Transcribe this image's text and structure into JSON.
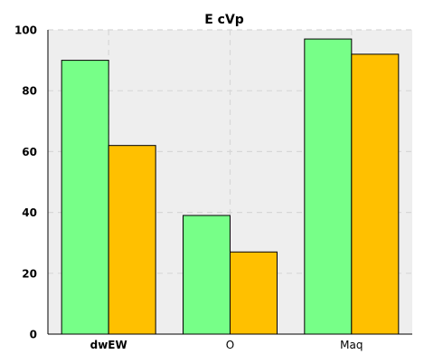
{
  "chart_data": {
    "type": "bar",
    "title": "E cVp",
    "xlabel": "",
    "ylabel": "",
    "categories": [
      "dwEW",
      "O",
      "Maq"
    ],
    "series": [
      {
        "values": [
          90,
          39,
          97
        ],
        "color": "#77ff88"
      },
      {
        "values": [
          62,
          27,
          92
        ],
        "color": "#ffc000"
      }
    ],
    "ylim": [
      0,
      100
    ],
    "yticks": [
      0,
      20,
      40,
      60,
      80,
      100
    ],
    "grid": true,
    "legend": "none",
    "plot_background": "#eeeeee",
    "grid_color": "#d7d7d7",
    "bar_edge_color": "#000000",
    "bold_category": "dwEW"
  }
}
